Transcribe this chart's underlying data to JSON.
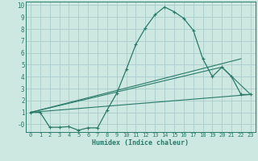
{
  "xlabel": "Humidex (Indice chaleur)",
  "bg_color": "#cce8e0",
  "grid_color": "#aacccc",
  "line_color": "#2a7a6a",
  "xlim": [
    -0.5,
    23.5
  ],
  "ylim": [
    -0.65,
    10.3
  ],
  "x_ticks": [
    0,
    1,
    2,
    3,
    4,
    5,
    6,
    7,
    8,
    9,
    10,
    11,
    12,
    13,
    14,
    15,
    16,
    17,
    18,
    19,
    20,
    21,
    22,
    23
  ],
  "y_ticks": [
    0,
    1,
    2,
    3,
    4,
    5,
    6,
    7,
    8,
    9,
    10
  ],
  "y_tick_labels": [
    "-0",
    "1",
    "2",
    "3",
    "4",
    "5",
    "6",
    "7",
    "8",
    "9",
    "10"
  ],
  "series": [
    {
      "x": [
        0,
        1,
        2,
        3,
        4,
        5,
        6,
        7,
        8,
        9,
        10,
        11,
        12,
        13,
        14,
        15,
        16,
        17,
        18,
        19,
        20,
        21,
        22,
        23
      ],
      "y": [
        1.0,
        1.0,
        -0.25,
        -0.25,
        -0.2,
        -0.5,
        -0.3,
        -0.3,
        1.2,
        2.6,
        4.6,
        6.7,
        8.1,
        9.2,
        9.85,
        9.45,
        8.9,
        7.9,
        5.5,
        4.0,
        4.8,
        4.0,
        2.5,
        2.5
      ],
      "marker": true
    },
    {
      "x": [
        0,
        22
      ],
      "y": [
        1.0,
        5.5
      ],
      "marker": false
    },
    {
      "x": [
        0,
        20,
        23
      ],
      "y": [
        1.0,
        4.8,
        2.5
      ],
      "marker": false
    },
    {
      "x": [
        0,
        23
      ],
      "y": [
        1.0,
        2.5
      ],
      "marker": false
    }
  ]
}
